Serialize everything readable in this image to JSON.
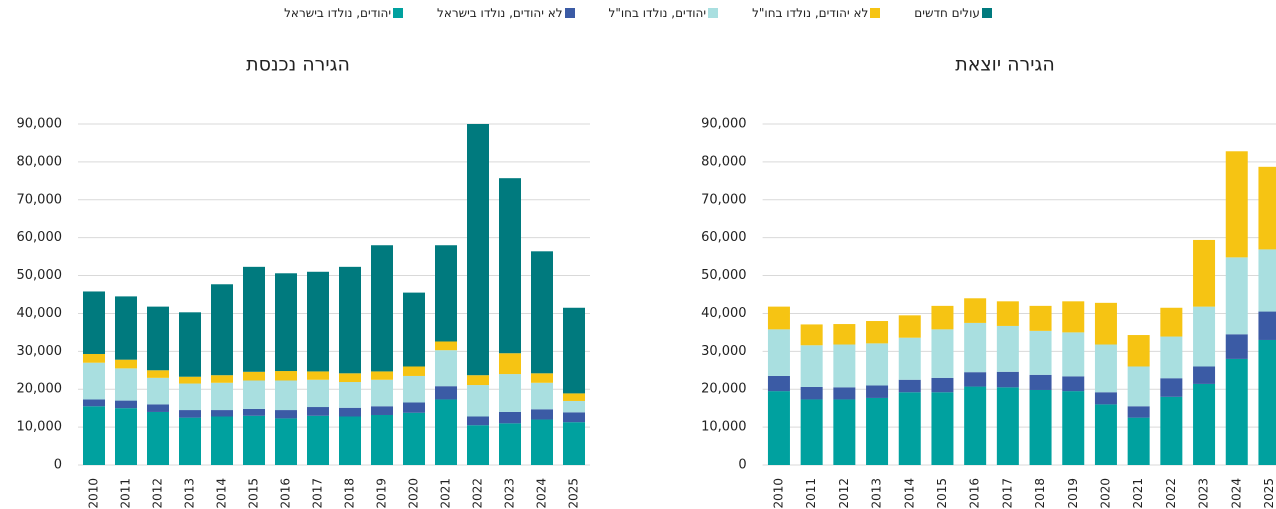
{
  "chart_data": [
    {
      "type": "stacked_bar",
      "title": "הגירה נכנסת",
      "categories": [
        "2010",
        "2011",
        "2012",
        "2013",
        "2014",
        "2015",
        "2016",
        "2017",
        "2018",
        "2019",
        "2020",
        "2021",
        "2022",
        "2023",
        "2024",
        "2025"
      ],
      "series": [
        {
          "name": "יהודים, נולדו בישראל",
          "color": "#00a19f",
          "values": [
            15.5,
            15,
            14,
            12.5,
            12.8,
            13,
            12.3,
            13,
            12.8,
            13.2,
            13.8,
            17.3,
            10.5,
            11,
            12,
            11.3
          ]
        },
        {
          "name": "לא יהודים, נולדו בישראל",
          "color": "#3b5ba5",
          "values": [
            1.8,
            2,
            2,
            2,
            1.7,
            1.8,
            2.2,
            2.3,
            2.3,
            2.3,
            2.7,
            3.5,
            2.3,
            3,
            2.7,
            2.6
          ]
        },
        {
          "name": "יהודים, נולדו בחו\"ל",
          "color": "#a9dfe0",
          "values": [
            9.7,
            8.5,
            7,
            7,
            7.2,
            7.5,
            7.8,
            7.2,
            6.8,
            7,
            7,
            9.5,
            8.3,
            10,
            7,
            3
          ]
        },
        {
          "name": "לא יהודים, נולדו בחו\"ל",
          "color": "#f6c413",
          "values": [
            2.3,
            2.3,
            2,
            1.8,
            2,
            2.3,
            2.5,
            2.2,
            2.3,
            2.2,
            2.5,
            2.3,
            2.6,
            5.5,
            2.5,
            2
          ]
        },
        {
          "name": "עולים חדשים",
          "color": "#007a7e",
          "values": [
            16.5,
            16.7,
            16.8,
            17,
            24,
            27.7,
            25.8,
            26.3,
            28.1,
            33.3,
            19.5,
            25.4,
            66.3,
            46.2,
            32.2,
            22.6
          ]
        }
      ],
      "ylim": [
        0,
        90000
      ],
      "yticks": [
        0,
        {
          "value": 10000,
          "label": "10,000"
        },
        {
          "value": 20000,
          "label": "20,000"
        },
        {
          "value": 30000,
          "label": "30,000"
        },
        {
          "value": 40000,
          "label": "40,000"
        },
        {
          "value": 50000,
          "label": "50,000"
        },
        {
          "value": 60000,
          "label": "60,000"
        },
        {
          "value": 70000,
          "label": "70,000"
        },
        {
          "value": 80000,
          "label": "80,000"
        },
        {
          "value": 90000,
          "label": "90,000"
        }
      ],
      "value_scale": 1000,
      "grid": true
    },
    {
      "type": "stacked_bar",
      "title": "הגירה יוצאת",
      "categories": [
        "2010",
        "2011",
        "2012",
        "2013",
        "2014",
        "2015",
        "2016",
        "2017",
        "2018",
        "2019",
        "2020",
        "2021",
        "2022",
        "2023",
        "2024",
        "2025"
      ],
      "series": [
        {
          "color": "#00a19f",
          "values": [
            19.5,
            17.3,
            17.3,
            17.7,
            19.2,
            19.2,
            20.7,
            20.5,
            19.8,
            19.5,
            16,
            12.5,
            18,
            21.4,
            28,
            33
          ]
        },
        {
          "color": "#3b5ba5",
          "values": [
            4,
            3.3,
            3.2,
            3.3,
            3.3,
            3.8,
            3.8,
            4.1,
            4,
            3.9,
            3.2,
            3,
            4.9,
            4.6,
            6.5,
            7.5
          ]
        },
        {
          "color": "#a9dfe0",
          "values": [
            12.3,
            11,
            11.3,
            11.1,
            11.1,
            12.8,
            13,
            12.1,
            11.6,
            11.6,
            12.6,
            10.5,
            11,
            15.8,
            20.3,
            16.4
          ]
        },
        {
          "color": "#f6c413",
          "values": [
            6,
            5.5,
            5.4,
            5.9,
            5.9,
            6.2,
            6.5,
            6.5,
            6.6,
            8.2,
            11,
            8.3,
            7.6,
            17.6,
            28,
            21.8
          ]
        }
      ],
      "ylim": [
        0,
        90000
      ],
      "yticks": [
        0,
        {
          "value": 10000,
          "label": "10,000"
        },
        {
          "value": 20000,
          "label": "20,000"
        },
        {
          "value": 30000,
          "label": "30,000"
        },
        {
          "value": 40000,
          "label": "40,000"
        },
        {
          "value": 50000,
          "label": "50,000"
        },
        {
          "value": 60000,
          "label": "60,000"
        },
        {
          "value": 70000,
          "label": "70,000"
        },
        {
          "value": 80000,
          "label": "80,000"
        },
        {
          "value": 90000,
          "label": "90,000"
        }
      ],
      "value_scale": 1000,
      "grid": true
    }
  ]
}
